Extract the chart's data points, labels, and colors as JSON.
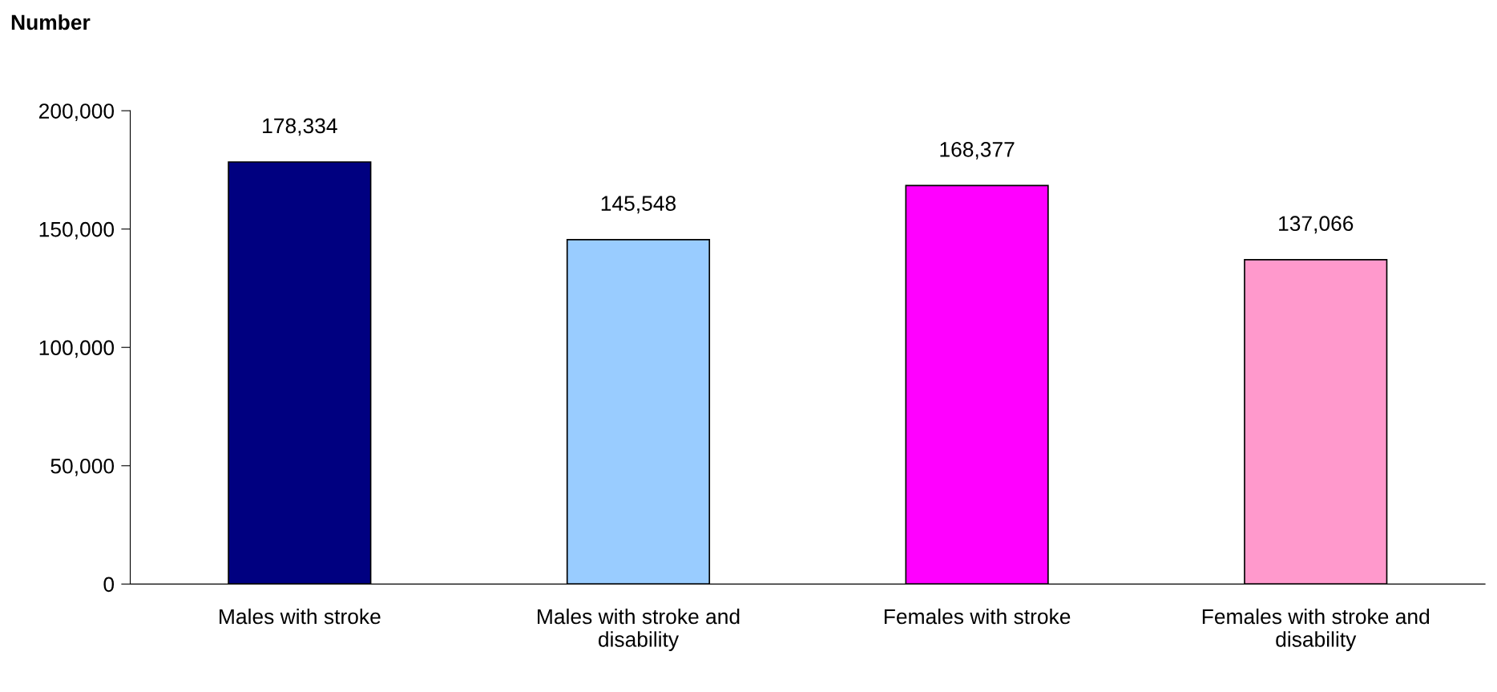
{
  "chart_data": {
    "type": "bar",
    "ylabel": "Number",
    "categories": [
      "Males with stroke",
      "Males with stroke and\ndisability",
      "Females with stroke",
      "Females with stroke and\ndisability"
    ],
    "values": [
      178334,
      145548,
      168377,
      137066
    ],
    "value_labels": [
      "178,334",
      "145,548",
      "168,377",
      "137,066"
    ],
    "colors": [
      "#000080",
      "#99ccff",
      "#ff00ff",
      "#ff99cc"
    ],
    "ylim": [
      0,
      200000
    ],
    "yticks": [
      0,
      {
        "value": 50000,
        "label": "50,000"
      },
      {
        "value": 100000,
        "label": "100,000"
      },
      {
        "value": 150000,
        "label": "150,000"
      },
      {
        "value": 200000,
        "label": "200,000"
      }
    ],
    "grid": false,
    "legend": false
  }
}
